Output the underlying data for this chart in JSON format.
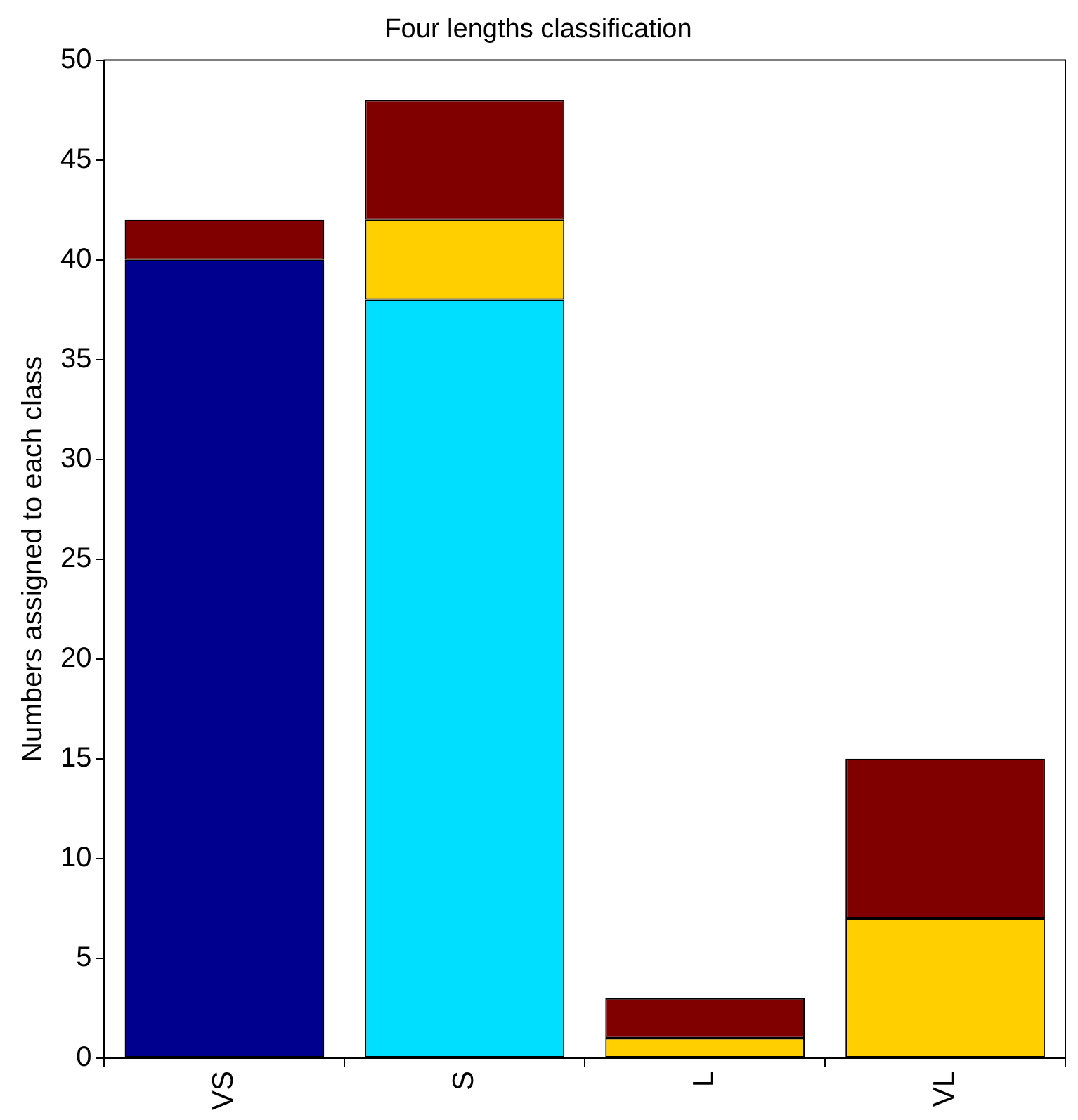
{
  "chart_data": {
    "type": "bar",
    "title": "Four lengths classification",
    "ylabel": "Numbers assigned to each class",
    "categories": [
      "VS",
      "S",
      "L",
      "VL"
    ],
    "stacked": true,
    "series": [
      {
        "color": "#00008f",
        "values": [
          40,
          0,
          0,
          0
        ]
      },
      {
        "color": "#00dfff",
        "values": [
          0,
          38,
          0,
          0
        ]
      },
      {
        "color": "#ffcf00",
        "values": [
          0,
          4,
          1,
          7
        ]
      },
      {
        "color": "#800000",
        "values": [
          2,
          6,
          2,
          8
        ]
      }
    ],
    "ylim": [
      0,
      50
    ],
    "yticks": [
      0,
      5,
      10,
      15,
      20,
      25,
      30,
      35,
      40,
      45,
      50
    ],
    "grid": false,
    "legend": false
  }
}
